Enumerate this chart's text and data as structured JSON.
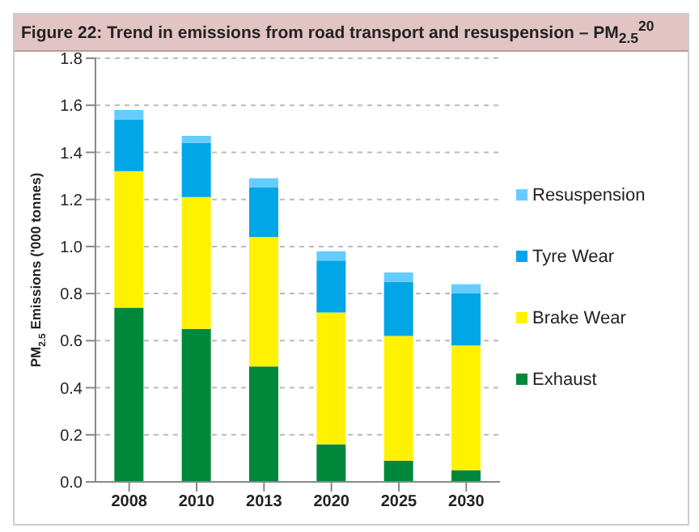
{
  "chart_data": {
    "type": "bar",
    "title": "Figure 22: Trend in emissions from road transport and resuspension – PM$_{2.5}$$^{20}$",
    "ylabel": "PM$_{2.5}$ Emissions ('000 tonnes)",
    "categories": [
      "2008",
      "2010",
      "2013",
      "2020",
      "2025",
      "2030"
    ],
    "stacked": true,
    "series": [
      {
        "name": "Exhaust",
        "color": "#00883a",
        "values": [
          0.74,
          0.65,
          0.49,
          0.16,
          0.09,
          0.05
        ]
      },
      {
        "name": "Brake Wear",
        "color": "#fff200",
        "values": [
          0.58,
          0.56,
          0.55,
          0.56,
          0.53,
          0.53
        ]
      },
      {
        "name": "Tyre Wear",
        "color": "#00a6e6",
        "values": [
          0.22,
          0.23,
          0.21,
          0.22,
          0.23,
          0.22
        ]
      },
      {
        "name": "Resuspension",
        "color": "#66ccff",
        "values": [
          0.04,
          0.03,
          0.04,
          0.04,
          0.04,
          0.04
        ]
      }
    ],
    "ylim": [
      0,
      1.8
    ],
    "yticks": [
      {
        "value": 0,
        "label": "0.0"
      },
      {
        "value": 0.2,
        "label": "0.2"
      },
      {
        "value": 0.4,
        "label": "0.4"
      },
      {
        "value": 0.6,
        "label": "0.6"
      },
      {
        "value": 0.8,
        "label": "0.8"
      },
      {
        "value": 1.0,
        "label": "1.0"
      },
      {
        "value": 1.2,
        "label": "1.2"
      },
      {
        "value": 1.4,
        "label": "1.4"
      },
      {
        "value": 1.6,
        "label": "1.6"
      },
      {
        "value": 1.8,
        "label": "1.8"
      }
    ],
    "grid": "y",
    "legend": "right"
  }
}
